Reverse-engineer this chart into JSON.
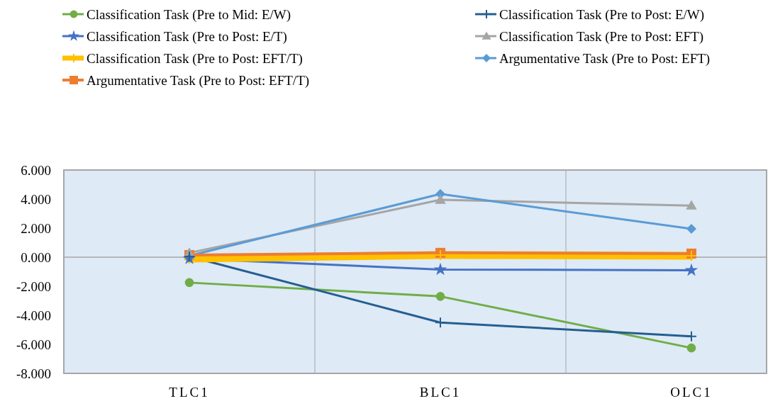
{
  "chart_data": {
    "type": "line",
    "categories": [
      "TLC1",
      "BLC1",
      "OLC1"
    ],
    "ylim": [
      -8,
      6
    ],
    "yticks": [
      {
        "value": -8,
        "label": "-8.000"
      },
      {
        "value": -6,
        "label": "-6.000"
      },
      {
        "value": -4,
        "label": "-4.000"
      },
      {
        "value": -2,
        "label": "-2.000"
      },
      {
        "value": 0,
        "label": "0.000"
      },
      {
        "value": 2,
        "label": "2.000"
      },
      {
        "value": 4,
        "label": "4.000"
      },
      {
        "value": 6,
        "label": "6.000"
      }
    ],
    "grid": "x",
    "legend": "top",
    "series": [
      {
        "name": "Classification Task (Pre to Mid: E/W)",
        "color": "#70ad47",
        "marker": "circle",
        "values": [
          -1.75,
          -2.7,
          -6.25
        ]
      },
      {
        "name": "Classification Task (Pre to Post: E/W)",
        "color": "#255e91",
        "marker": "cross",
        "values": [
          0.05,
          -4.5,
          -5.45
        ]
      },
      {
        "name": "Classification Task (Pre to Post: E/T)",
        "color": "#4472c4",
        "marker": "star",
        "values": [
          -0.1,
          -0.85,
          -0.9
        ]
      },
      {
        "name": "Classification Task (Pre to Post: EFT)",
        "color": "#a5a5a5",
        "marker": "triangle",
        "values": [
          0.3,
          3.95,
          3.55
        ]
      },
      {
        "name": "Classification Task (Pre to Post: EFT/T)",
        "color": "#ffc000",
        "marker": "cross",
        "values": [
          -0.1,
          0.15,
          0.1
        ]
      },
      {
        "name": "Argumentative Task (Pre to Post: EFT)",
        "color": "#5b9bd5",
        "marker": "diamond",
        "values": [
          0.1,
          4.35,
          1.95
        ]
      },
      {
        "name": "Argumentative Task (Pre to Post: EFT/T)",
        "color": "#ed7d31",
        "marker": "square",
        "values": [
          0.15,
          0.3,
          0.25
        ]
      }
    ]
  }
}
